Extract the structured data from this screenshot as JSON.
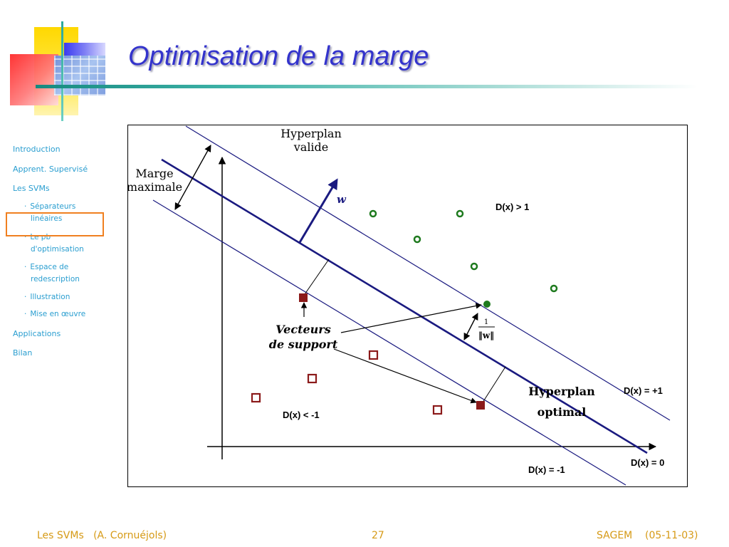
{
  "page_title": "Optimisation de la marge",
  "sidebar": {
    "items": [
      {
        "label": "Introduction"
      },
      {
        "label": "Apprent. Supervisé"
      },
      {
        "label": "Les SVMs"
      }
    ],
    "subitems": [
      {
        "line1": "Séparateurs",
        "line2": "linéaires"
      },
      {
        "line1": "Le pb",
        "line2": "d'optimisation"
      },
      {
        "line1": "Espace de",
        "line2": "redescription"
      },
      {
        "line1": "Illustration",
        "line2": ""
      },
      {
        "line1": "Mise en œuvre",
        "line2": ""
      }
    ],
    "items_after": [
      {
        "label": "Applications"
      },
      {
        "label": "Bilan"
      }
    ],
    "bullet": "·"
  },
  "diagram": {
    "hyperplan_valide": [
      "Hyperplan",
      "valide"
    ],
    "marge_maximale": [
      "Marge",
      "maximale"
    ],
    "w": "w",
    "d_gt_1": "D(x) > 1",
    "d_lt_m1": "D(x) < -1",
    "d_eq_p1": "D(x) = +1",
    "d_eq_0": "D(x) = 0",
    "d_eq_m1": "D(x) = -1",
    "vecteurs": [
      "Vecteurs",
      "de support"
    ],
    "hyperplan_optimal": [
      "Hyperplan",
      "optimal"
    ],
    "frac_num": "1",
    "frac_den": "‖w‖",
    "colors": {
      "circle": "#1e7a1e",
      "square": "#8b1a1a",
      "line": "#1a1a80"
    }
  },
  "footer": {
    "left": "Les SVMs   (A. Cornuéjols)",
    "page": "27",
    "right": "SAGEM    (05-11-03)"
  }
}
